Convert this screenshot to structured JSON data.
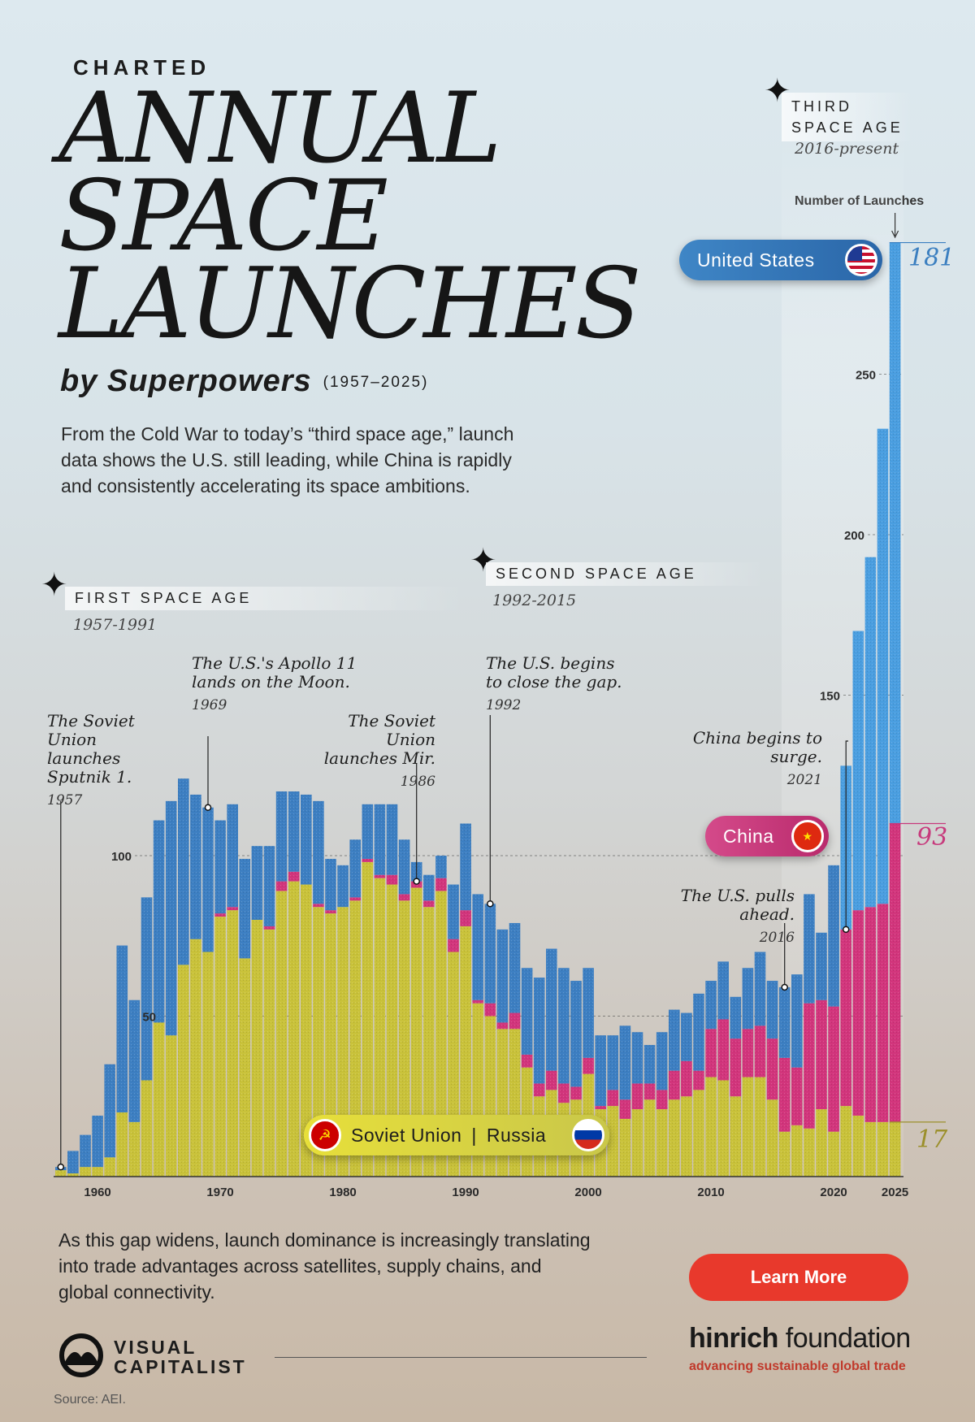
{
  "kicker": "CHARTED",
  "title_lines": [
    "ANNUAL",
    "SPACE",
    "LAUNCHES"
  ],
  "subtitle": "by Superpowers",
  "subtitle_years": "(1957–2025)",
  "intro": "From the Cold War to today’s “third space age,” launch data shows the U.S. still leading, while China is rapidly and consistently accelerating its space ambitions.",
  "ages": {
    "first": {
      "label": "FIRST SPACE AGE",
      "years": "1957-1991"
    },
    "second": {
      "label": "SECOND SPACE AGE",
      "years": "1992-2015"
    },
    "third": {
      "label_line1": "THIRD",
      "label_line2": "SPACE AGE",
      "years": "2016-present"
    }
  },
  "annotations": {
    "sputnik": {
      "text_lines": [
        "The Soviet",
        "Union",
        "launches",
        "Sputnik 1."
      ],
      "year": "1957"
    },
    "apollo": {
      "text_lines": [
        "The U.S.'s Apollo 11",
        "lands on the Moon."
      ],
      "year": "1969"
    },
    "mir": {
      "text_lines": [
        "The Soviet Union",
        "launches Mir."
      ],
      "year": "1986"
    },
    "gap": {
      "text_lines": [
        "The U.S. begins",
        "to close the gap."
      ],
      "year": "1992"
    },
    "china_surge": {
      "text": "China begins to surge.",
      "year": "2021"
    },
    "us_ahead": {
      "text": "The U.S. pulls ahead.",
      "year": "2016"
    }
  },
  "number_of_launches_label": "Number of Launches",
  "labels": {
    "us": "United States",
    "china": "China",
    "soviet": "Soviet Union",
    "russia": "Russia",
    "divider": "|"
  },
  "end_values": {
    "us": "181",
    "china": "93",
    "russia": "17"
  },
  "outro": "As this gap widens, launch dominance is increasingly translating into trade advantages across satellites, supply chains, and global connectivity.",
  "cta": "Learn More",
  "brand": {
    "vc_line1": "VISUAL",
    "vc_line2": "CAPITALIST",
    "hinrich_bold": "hinrich",
    "hinrich_rest": " foundation",
    "hinrich_tag": "advancing sustainable global trade"
  },
  "source": "Source: AEI.",
  "colors": {
    "soviet_russia": "#c9c23a",
    "china": "#d2357c",
    "us": "#3d7fc2",
    "us_recent": "#4a9ee0"
  },
  "chart_data": {
    "type": "bar",
    "stacked": true,
    "x": [
      1957,
      1958,
      1959,
      1960,
      1961,
      1962,
      1963,
      1964,
      1965,
      1966,
      1967,
      1968,
      1969,
      1970,
      1971,
      1972,
      1973,
      1974,
      1975,
      1976,
      1977,
      1978,
      1979,
      1980,
      1981,
      1982,
      1983,
      1984,
      1985,
      1986,
      1987,
      1988,
      1989,
      1990,
      1991,
      1992,
      1993,
      1994,
      1995,
      1996,
      1997,
      1998,
      1999,
      2000,
      2001,
      2002,
      2003,
      2004,
      2005,
      2006,
      2007,
      2008,
      2009,
      2010,
      2011,
      2012,
      2013,
      2014,
      2015,
      2016,
      2017,
      2018,
      2019,
      2020,
      2021,
      2022,
      2023,
      2024,
      2025
    ],
    "series": [
      {
        "name": "Soviet Union | Russia",
        "values": [
          2,
          1,
          3,
          3,
          6,
          20,
          17,
          30,
          48,
          44,
          66,
          74,
          70,
          81,
          83,
          68,
          80,
          77,
          89,
          92,
          91,
          84,
          82,
          84,
          86,
          98,
          93,
          91,
          86,
          90,
          84,
          89,
          70,
          78,
          54,
          50,
          46,
          46,
          34,
          25,
          27,
          23,
          24,
          32,
          21,
          22,
          18,
          21,
          24,
          21,
          24,
          25,
          27,
          31,
          30,
          25,
          31,
          31,
          24,
          14,
          16,
          15,
          21,
          14,
          22,
          19,
          17,
          17,
          17
        ]
      },
      {
        "name": "China",
        "values": [
          0,
          0,
          0,
          0,
          0,
          0,
          0,
          0,
          0,
          0,
          0,
          0,
          0,
          1,
          1,
          0,
          0,
          1,
          3,
          3,
          0,
          1,
          1,
          0,
          1,
          1,
          1,
          3,
          2,
          2,
          2,
          4,
          4,
          5,
          1,
          4,
          2,
          5,
          4,
          4,
          6,
          6,
          4,
          5,
          1,
          5,
          6,
          8,
          5,
          6,
          9,
          11,
          6,
          15,
          19,
          18,
          15,
          16,
          19,
          23,
          18,
          39,
          34,
          39,
          55,
          64,
          67,
          68,
          93
        ]
      },
      {
        "name": "United States",
        "values": [
          1,
          7,
          10,
          16,
          29,
          52,
          38,
          57,
          63,
          73,
          58,
          45,
          45,
          29,
          32,
          31,
          23,
          25,
          28,
          25,
          28,
          32,
          16,
          13,
          18,
          17,
          22,
          22,
          17,
          6,
          8,
          7,
          17,
          27,
          33,
          31,
          29,
          28,
          27,
          33,
          38,
          36,
          33,
          28,
          22,
          17,
          23,
          16,
          12,
          18,
          19,
          15,
          24,
          15,
          18,
          13,
          19,
          23,
          18,
          22,
          29,
          34,
          21,
          44,
          51,
          87,
          109,
          148,
          181
        ]
      }
    ],
    "yticks": [
      50,
      100,
      150,
      200,
      250
    ],
    "ylim": [
      0,
      292
    ],
    "xticks": [
      "1960",
      "1970",
      "1980",
      "1990",
      "2000",
      "2010",
      "2020",
      "2025"
    ],
    "ylabel": "Number of Launches"
  }
}
